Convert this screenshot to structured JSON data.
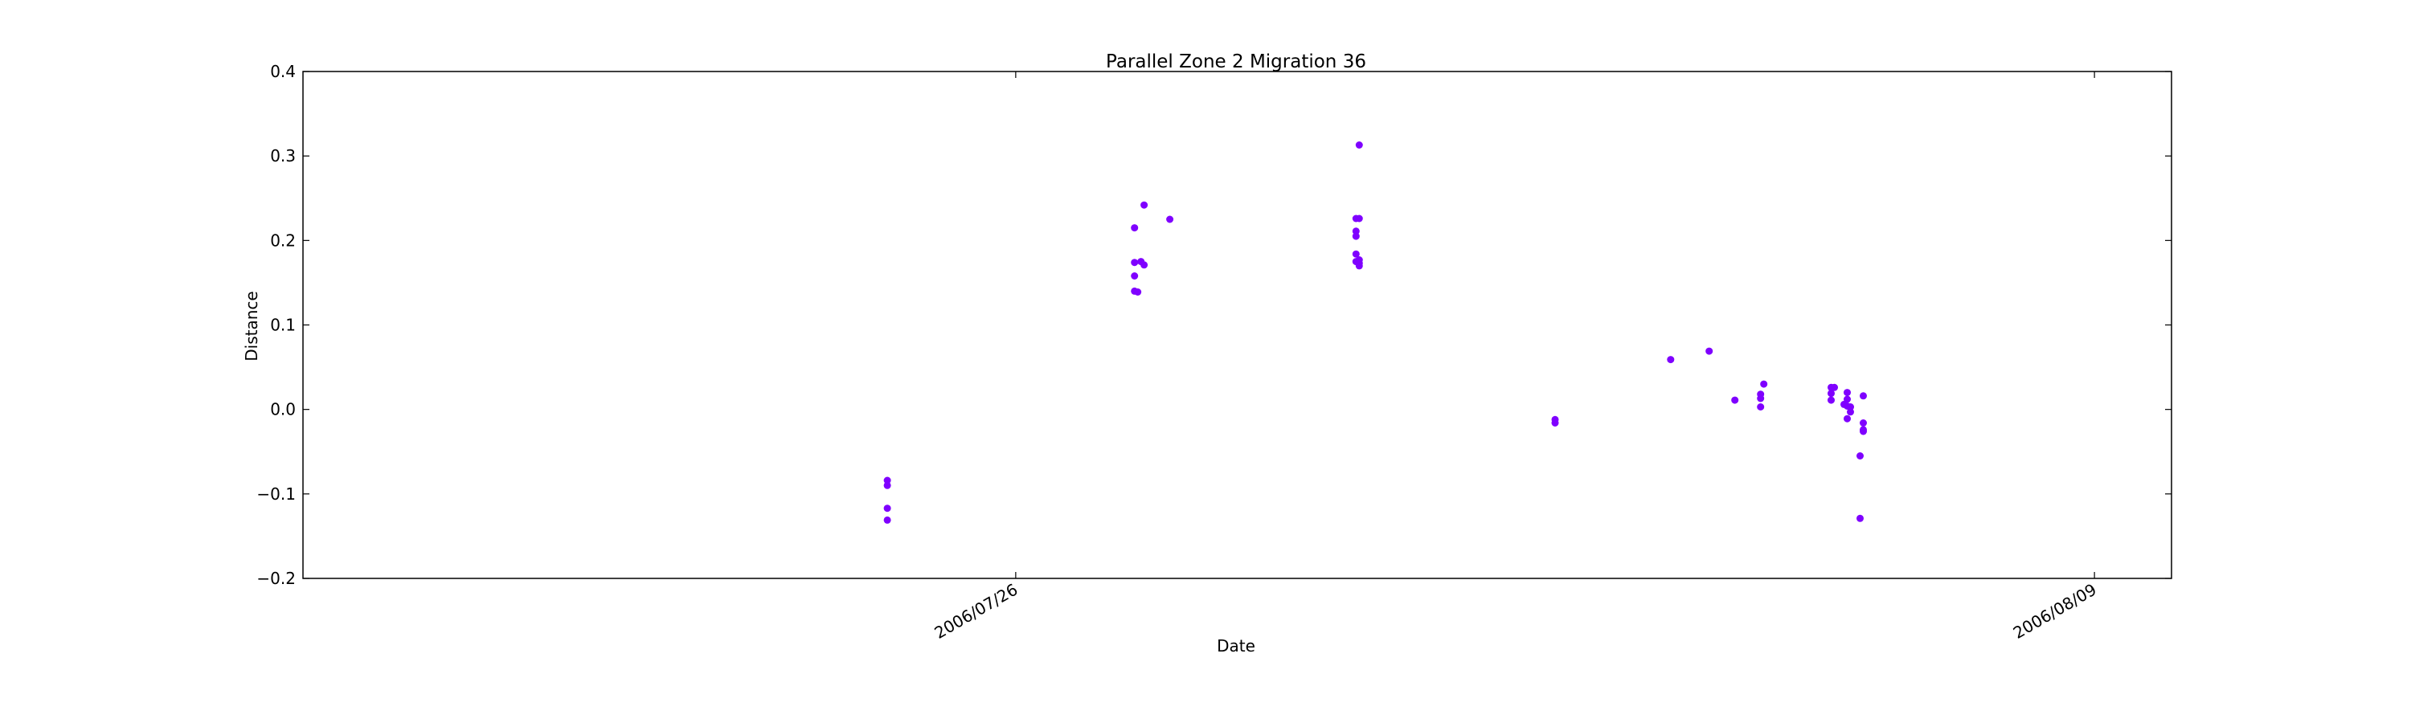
{
  "chart_data": {
    "type": "scatter",
    "title": "Parallel Zone 2 Migration 36",
    "xlabel": "Date",
    "ylabel": "Distance",
    "x_axis_type": "date",
    "xlim": [
      "2006-07-16T18:00",
      "2006-08-10T00:00"
    ],
    "ylim": [
      -0.2,
      0.4
    ],
    "x_ticks": [
      {
        "value": "2006-07-26",
        "label": "2006/07/26"
      },
      {
        "value": "2006-08-09",
        "label": "2006/08/09"
      }
    ],
    "y_ticks": [
      {
        "value": -0.2,
        "label": "−0.2"
      },
      {
        "value": -0.1,
        "label": "−0.1"
      },
      {
        "value": 0.0,
        "label": "0.0"
      },
      {
        "value": 0.1,
        "label": "0.1"
      },
      {
        "value": 0.2,
        "label": "0.2"
      },
      {
        "value": 0.3,
        "label": "0.3"
      },
      {
        "value": 0.4,
        "label": "0.4"
      }
    ],
    "grid": false,
    "marker_color": "#7f00ff",
    "series": [
      {
        "points": [
          {
            "x": "2006-07-24T08:00",
            "y": -0.084
          },
          {
            "x": "2006-07-24T08:00",
            "y": -0.09
          },
          {
            "x": "2006-07-24T08:00",
            "y": -0.117
          },
          {
            "x": "2006-07-24T08:00",
            "y": -0.131
          },
          {
            "x": "2006-07-27T13:00",
            "y": 0.215
          },
          {
            "x": "2006-07-27T13:00",
            "y": 0.174
          },
          {
            "x": "2006-07-27T13:00",
            "y": 0.158
          },
          {
            "x": "2006-07-27T13:00",
            "y": 0.14
          },
          {
            "x": "2006-07-27T14:00",
            "y": 0.139
          },
          {
            "x": "2006-07-27T15:00",
            "y": 0.175
          },
          {
            "x": "2006-07-27T16:00",
            "y": 0.242
          },
          {
            "x": "2006-07-27T16:00",
            "y": 0.171
          },
          {
            "x": "2006-07-28T00:00",
            "y": 0.225
          },
          {
            "x": "2006-07-30T11:00",
            "y": 0.313
          },
          {
            "x": "2006-07-30T10:00",
            "y": 0.226
          },
          {
            "x": "2006-07-30T11:00",
            "y": 0.226
          },
          {
            "x": "2006-07-30T10:00",
            "y": 0.211
          },
          {
            "x": "2006-07-30T10:00",
            "y": 0.205
          },
          {
            "x": "2006-07-30T10:00",
            "y": 0.184
          },
          {
            "x": "2006-07-30T10:00",
            "y": 0.175
          },
          {
            "x": "2006-07-30T11:00",
            "y": 0.177
          },
          {
            "x": "2006-07-30T11:00",
            "y": 0.173
          },
          {
            "x": "2006-07-30T11:00",
            "y": 0.17
          },
          {
            "x": "2006-08-02T00:00",
            "y": -0.012
          },
          {
            "x": "2006-08-02T00:00",
            "y": -0.016
          },
          {
            "x": "2006-08-03T12:00",
            "y": 0.059
          },
          {
            "x": "2006-08-04T00:00",
            "y": 0.069
          },
          {
            "x": "2006-08-04T08:00",
            "y": 0.011
          },
          {
            "x": "2006-08-04T17:00",
            "y": 0.03
          },
          {
            "x": "2006-08-04T16:00",
            "y": 0.018
          },
          {
            "x": "2006-08-04T16:00",
            "y": 0.013
          },
          {
            "x": "2006-08-04T16:00",
            "y": 0.003
          },
          {
            "x": "2006-08-05T14:00",
            "y": 0.026
          },
          {
            "x": "2006-08-05T15:00",
            "y": 0.026
          },
          {
            "x": "2006-08-05T14:00",
            "y": 0.019
          },
          {
            "x": "2006-08-05T14:00",
            "y": 0.011
          },
          {
            "x": "2006-08-05T19:00",
            "y": 0.02
          },
          {
            "x": "2006-08-05T19:00",
            "y": 0.012
          },
          {
            "x": "2006-08-05T18:00",
            "y": 0.006
          },
          {
            "x": "2006-08-05T19:00",
            "y": 0.004
          },
          {
            "x": "2006-08-05T20:00",
            "y": 0.003
          },
          {
            "x": "2006-08-05T20:00",
            "y": -0.003
          },
          {
            "x": "2006-08-05T19:00",
            "y": -0.011
          },
          {
            "x": "2006-08-06T00:00",
            "y": 0.016
          },
          {
            "x": "2006-08-06T00:00",
            "y": -0.016
          },
          {
            "x": "2006-08-06T00:00",
            "y": -0.024
          },
          {
            "x": "2006-08-06T00:00",
            "y": -0.026
          },
          {
            "x": "2006-08-05T23:00",
            "y": -0.055
          },
          {
            "x": "2006-08-05T23:00",
            "y": -0.129
          }
        ]
      }
    ]
  }
}
